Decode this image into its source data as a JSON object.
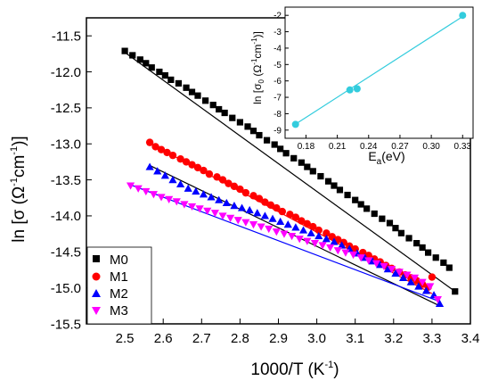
{
  "chart_data": [
    {
      "type": "scatter",
      "xlabel": "1000/T (K",
      "xlabel_sup": "-1",
      "xlabel_end": ")",
      "ylabel_prefix": "ln [σ (Ω",
      "ylabel_sup1": "-1",
      "ylabel_mid": "cm",
      "ylabel_sup2": "-1",
      "ylabel_suffix": ")]",
      "xlim": [
        2.4,
        3.4
      ],
      "ylim": [
        -15.5,
        -11.25
      ],
      "xticks": [
        "2.5",
        "2.6",
        "2.7",
        "2.8",
        "2.9",
        "3.0",
        "3.1",
        "3.2",
        "3.3",
        "3.4"
      ],
      "yticks": [
        "-11.5",
        "-12.0",
        "-12.5",
        "-13.0",
        "-13.5",
        "-14.0",
        "-14.5",
        "-15.0",
        "-15.5"
      ],
      "legend_position": "bottom-left",
      "series": [
        {
          "name": "M0",
          "marker": "square",
          "color": "#000000",
          "fit_color": "#000000",
          "x": [
            2.5,
            2.52,
            2.54,
            2.555,
            2.57,
            2.59,
            2.605,
            2.62,
            2.64,
            2.66,
            2.675,
            2.69,
            2.71,
            2.73,
            2.745,
            2.76,
            2.78,
            2.8,
            2.82,
            2.835,
            2.85,
            2.87,
            2.89,
            2.905,
            2.92,
            2.94,
            2.96,
            2.975,
            2.99,
            3.01,
            3.03,
            3.045,
            3.06,
            3.08,
            3.1,
            3.115,
            3.13,
            3.15,
            3.17,
            3.19,
            3.205,
            3.22,
            3.24,
            3.26,
            3.275,
            3.29,
            3.31,
            3.33,
            3.345,
            3.36
          ],
          "y": [
            -11.71,
            -11.77,
            -11.83,
            -11.88,
            -11.94,
            -12.0,
            -12.05,
            -12.11,
            -12.16,
            -12.22,
            -12.28,
            -12.33,
            -12.4,
            -12.46,
            -12.52,
            -12.57,
            -12.64,
            -12.7,
            -12.76,
            -12.82,
            -12.88,
            -12.95,
            -13.01,
            -13.07,
            -13.13,
            -13.2,
            -13.26,
            -13.32,
            -13.38,
            -13.45,
            -13.52,
            -13.58,
            -13.64,
            -13.71,
            -13.78,
            -13.84,
            -13.9,
            -13.97,
            -14.04,
            -14.1,
            -14.17,
            -14.24,
            -14.31,
            -14.38,
            -14.44,
            -14.51,
            -14.58,
            -14.65,
            -14.72,
            -15.05
          ],
          "fit": [
            [
              2.5,
              -11.73
            ],
            [
              3.36,
              -15.05
            ]
          ]
        },
        {
          "name": "M1",
          "marker": "circle",
          "color": "#ff0000",
          "fit_color": "#ff0000",
          "x": [
            2.565,
            2.58,
            2.595,
            2.61,
            2.625,
            2.645,
            2.66,
            2.675,
            2.69,
            2.705,
            2.72,
            2.74,
            2.755,
            2.77,
            2.785,
            2.8,
            2.815,
            2.835,
            2.85,
            2.865,
            2.88,
            2.895,
            2.91,
            2.93,
            2.945,
            2.96,
            2.975,
            2.99,
            3.005,
            3.025,
            3.04,
            3.055,
            3.07,
            3.085,
            3.1,
            3.12,
            3.135,
            3.15,
            3.165,
            3.18,
            3.195,
            3.215,
            3.23,
            3.245,
            3.26,
            3.275,
            3.29,
            3.3
          ],
          "y": [
            -12.98,
            -13.04,
            -13.08,
            -13.12,
            -13.16,
            -13.21,
            -13.25,
            -13.29,
            -13.33,
            -13.37,
            -13.42,
            -13.46,
            -13.5,
            -13.55,
            -13.59,
            -13.63,
            -13.68,
            -13.72,
            -13.76,
            -13.81,
            -13.85,
            -13.89,
            -13.94,
            -13.98,
            -14.02,
            -14.07,
            -14.11,
            -14.15,
            -14.2,
            -14.24,
            -14.29,
            -14.33,
            -14.37,
            -14.42,
            -14.46,
            -14.51,
            -14.55,
            -14.6,
            -14.64,
            -14.69,
            -14.73,
            -14.78,
            -14.82,
            -14.86,
            -14.9,
            -14.95,
            -14.99,
            -14.85
          ],
          "fit": [
            [
              2.565,
              -12.99
            ],
            [
              3.3,
              -15.08
            ]
          ]
        },
        {
          "name": "M2",
          "marker": "triangle-up",
          "color": "#0000ff",
          "fit_color": "#000000",
          "x": [
            2.565,
            2.585,
            2.605,
            2.625,
            2.645,
            2.665,
            2.685,
            2.705,
            2.725,
            2.745,
            2.765,
            2.785,
            2.805,
            2.825,
            2.845,
            2.865,
            2.885,
            2.905,
            2.925,
            2.945,
            2.965,
            2.985,
            3.005,
            3.025,
            3.045,
            3.065,
            3.085,
            3.105,
            3.125,
            3.145,
            3.165,
            3.185,
            3.205,
            3.225,
            3.245,
            3.265,
            3.285,
            3.305,
            3.32
          ],
          "y": [
            -13.32,
            -13.38,
            -13.44,
            -13.5,
            -13.56,
            -13.62,
            -13.66,
            -13.7,
            -13.74,
            -13.78,
            -13.82,
            -13.86,
            -13.89,
            -13.92,
            -13.96,
            -14.0,
            -14.04,
            -14.08,
            -14.12,
            -14.16,
            -14.2,
            -14.24,
            -14.28,
            -14.32,
            -14.36,
            -14.41,
            -14.46,
            -14.52,
            -14.58,
            -14.63,
            -14.68,
            -14.74,
            -14.8,
            -14.86,
            -14.92,
            -14.98,
            -15.04,
            -15.1,
            -15.22
          ],
          "fit": [
            [
              2.565,
              -13.3
            ],
            [
              3.32,
              -15.25
            ]
          ]
        },
        {
          "name": "M3",
          "marker": "triangle-down",
          "color": "#ff00ff",
          "fit_color": "#0000ff",
          "x": [
            2.515,
            2.535,
            2.555,
            2.575,
            2.595,
            2.615,
            2.635,
            2.655,
            2.675,
            2.695,
            2.715,
            2.735,
            2.755,
            2.775,
            2.795,
            2.815,
            2.835,
            2.855,
            2.875,
            2.895,
            2.915,
            2.935,
            2.955,
            2.975,
            2.995,
            3.015,
            3.035,
            3.055,
            3.075,
            3.095,
            3.115,
            3.135,
            3.155,
            3.175,
            3.195,
            3.215,
            3.235,
            3.255,
            3.275,
            3.295,
            3.315
          ],
          "y": [
            -13.58,
            -13.62,
            -13.66,
            -13.7,
            -13.74,
            -13.77,
            -13.8,
            -13.84,
            -13.87,
            -13.9,
            -13.93,
            -13.96,
            -14.0,
            -14.03,
            -14.06,
            -14.09,
            -14.12,
            -14.15,
            -14.18,
            -14.22,
            -14.25,
            -14.28,
            -14.32,
            -14.35,
            -14.38,
            -14.41,
            -14.44,
            -14.48,
            -14.51,
            -14.54,
            -14.58,
            -14.62,
            -14.66,
            -14.7,
            -14.74,
            -14.78,
            -14.82,
            -14.86,
            -14.92,
            -14.98,
            -15.16
          ],
          "fit": [
            [
              2.515,
              -13.57
            ],
            [
              3.315,
              -15.18
            ]
          ]
        }
      ]
    },
    {
      "type": "scatter",
      "xlabel_main": "E",
      "xlabel_sub": "a",
      "xlabel_rest": "(eV)",
      "ylabel_prefix": "ln [σ",
      "ylabel_sub": "0",
      "ylabel_open": " (Ω",
      "ylabel_sup1": "-1",
      "ylabel_mid": "cm",
      "ylabel_sup2": "-1",
      "ylabel_suffix": ")]",
      "xlim": [
        0.16,
        0.34
      ],
      "ylim": [
        -9.5,
        -1.5
      ],
      "xticks": [
        "0.18",
        "0.21",
        "0.24",
        "0.27",
        "0.30",
        "0.33"
      ],
      "yticks": [
        "-2",
        "-3",
        "-4",
        "-5",
        "-6",
        "-7",
        "-8",
        "-9"
      ],
      "series": [
        {
          "marker": "circle",
          "color": "#33ccdd",
          "fit_color": "#33ccdd",
          "x": [
            0.17,
            0.222,
            0.229,
            0.33
          ],
          "y": [
            -8.65,
            -6.55,
            -6.48,
            -2.0
          ],
          "fit": [
            [
              0.168,
              -8.72
            ],
            [
              0.333,
              -1.95
            ]
          ]
        }
      ]
    }
  ]
}
